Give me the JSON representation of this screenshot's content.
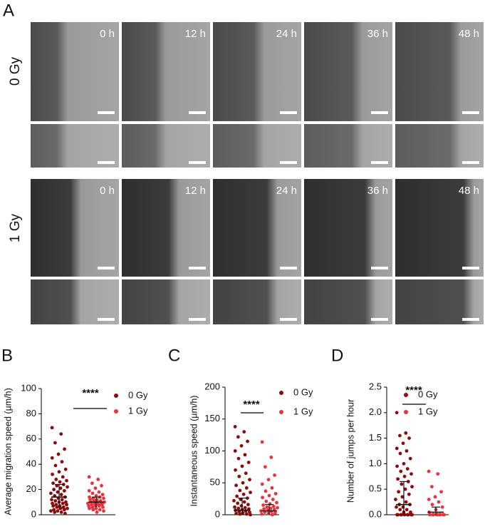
{
  "panel_a": {
    "label": "A",
    "rows": [
      {
        "label": "0 Gy",
        "times": [
          "0 h",
          "12 h",
          "24 h",
          "36 h",
          "48 h"
        ]
      },
      {
        "label": "1 Gy",
        "times": [
          "0 h",
          "12 h",
          "24 h",
          "36 h",
          "48 h"
        ]
      }
    ]
  },
  "chart_data": [
    {
      "type": "strip",
      "panel_label": "B",
      "ylabel": "Average migration speed (µm/h)",
      "annotation": "****",
      "ylim": [
        0,
        100
      ],
      "yticks": [
        0,
        20,
        40,
        60,
        80,
        100
      ],
      "series": [
        {
          "name": "0 Gy",
          "color": "#8b0a0a",
          "mean": 14,
          "sd": 10,
          "values": [
            69,
            64,
            57,
            52,
            48,
            45,
            42,
            39,
            36,
            34,
            32,
            30,
            28,
            27,
            26,
            25,
            24,
            23,
            22,
            21,
            20,
            19,
            18,
            17,
            16,
            15,
            14,
            13,
            12,
            12,
            11,
            10,
            10,
            9,
            9,
            8,
            8,
            7,
            7,
            6,
            6,
            5,
            5,
            4,
            4,
            3,
            3,
            2,
            2,
            1
          ]
        },
        {
          "name": "1 Gy",
          "color": "#e8323c",
          "mean": 10,
          "sd": 4,
          "values": [
            30,
            28,
            25,
            23,
            21,
            19,
            18,
            17,
            16,
            15,
            14,
            14,
            13,
            13,
            12,
            12,
            11,
            11,
            10,
            10,
            10,
            9,
            9,
            9,
            8,
            8,
            8,
            7,
            7,
            7,
            6,
            6,
            5,
            5,
            4,
            4,
            3,
            2
          ]
        }
      ]
    },
    {
      "type": "strip",
      "panel_label": "C",
      "ylabel": "Instantaneous speed (µm/h)",
      "annotation": "****",
      "ylim": [
        0,
        200
      ],
      "yticks": [
        0,
        50,
        100,
        150,
        200
      ],
      "series": [
        {
          "name": "0 Gy",
          "color": "#8b0a0a",
          "mean": 7,
          "sd": 19,
          "values": [
            138,
            130,
            122,
            115,
            108,
            100,
            94,
            88,
            82,
            76,
            70,
            65,
            60,
            55,
            50,
            46,
            42,
            38,
            35,
            32,
            29,
            26,
            24,
            22,
            20,
            18,
            16,
            14,
            12,
            11,
            10,
            9,
            8,
            7,
            6,
            5,
            4,
            3,
            2,
            1,
            1,
            0
          ]
        },
        {
          "name": "1 Gy",
          "color": "#e8323c",
          "mean": 6,
          "sd": 10,
          "values": [
            114,
            90,
            75,
            62,
            55,
            48,
            42,
            37,
            33,
            30,
            27,
            24,
            21,
            19,
            17,
            15,
            13,
            12,
            11,
            10,
            9,
            8,
            7,
            6,
            5,
            4,
            3,
            2,
            1,
            0
          ]
        }
      ]
    },
    {
      "type": "strip",
      "panel_label": "D",
      "ylabel": "Number of jumps per hour",
      "annotation": "****",
      "ylim": [
        0,
        2.5
      ],
      "yticks": [
        {
          "value": 0,
          "label": "0.0"
        },
        0.5,
        {
          "value": 1,
          "label": "1.0"
        },
        1.5,
        {
          "value": 2,
          "label": "2.0"
        },
        2.5
      ],
      "series": [
        {
          "name": "0 Gy",
          "color": "#8b0a0a",
          "mean": 0.2,
          "sd": 0.45,
          "values": [
            2.0,
            1.6,
            1.55,
            1.5,
            1.4,
            1.3,
            1.25,
            1.2,
            1.1,
            1.0,
            0.95,
            0.9,
            0.85,
            0.8,
            0.75,
            0.7,
            0.65,
            0.6,
            0.55,
            0.5,
            0.45,
            0.4,
            0.35,
            0.3,
            0.25,
            0.2,
            0.2,
            0.15,
            0.15,
            0.1,
            0.1,
            0.05,
            0.05,
            0,
            0,
            0,
            0,
            0,
            0,
            0,
            0,
            0
          ]
        },
        {
          "name": "1 Gy",
          "color": "#e8323c",
          "mean": 0.05,
          "sd": 0.1,
          "values": [
            0.85,
            0.8,
            0.55,
            0.45,
            0.35,
            0.3,
            0.25,
            0.2,
            0.15,
            0.1,
            0.05,
            0,
            0,
            0,
            0,
            0,
            0,
            0,
            0,
            0
          ]
        }
      ]
    }
  ]
}
